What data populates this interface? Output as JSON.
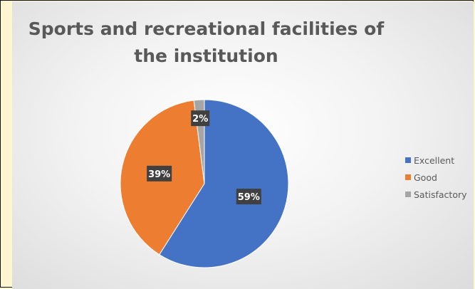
{
  "chart_data": {
    "type": "pie",
    "title_lines": [
      "Sports and recreational facilities of",
      "the institution"
    ],
    "categories": [
      "Excellent",
      "Good",
      "Satisfactory"
    ],
    "values": [
      59,
      39,
      2
    ],
    "data_labels": [
      "59%",
      "39%",
      "2%"
    ],
    "colors": [
      "#4472c4",
      "#ed7d31",
      "#a5a5a5"
    ],
    "legend_position": "right",
    "start_angle_deg": 0,
    "direction": "clockwise"
  }
}
